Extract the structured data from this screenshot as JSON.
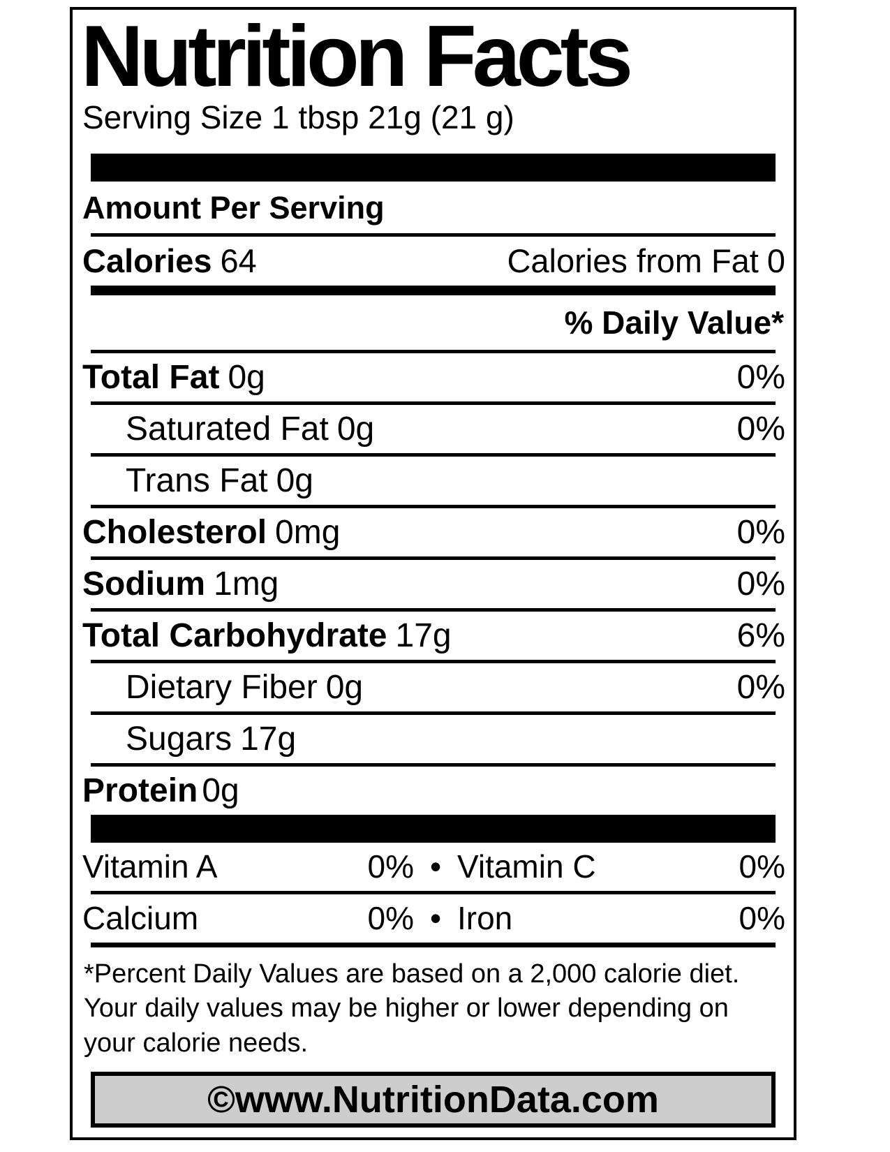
{
  "label": {
    "title": "Nutrition Facts",
    "serving_size": "Serving Size 1 tbsp 21g (21 g)",
    "amount_per_serving": "Amount Per Serving",
    "calories": {
      "label": "Calories",
      "value": "64"
    },
    "calories_from_fat": {
      "label": "Calories from Fat",
      "value": "0"
    },
    "daily_value_header": "% Daily Value*",
    "nutrients": [
      {
        "name": "Total Fat",
        "amount": "0g",
        "dv": "0%"
      },
      {
        "name": "Saturated Fat",
        "amount": "0g",
        "dv": "0%"
      },
      {
        "name": "Trans Fat",
        "amount": "0g",
        "dv": ""
      },
      {
        "name": "Cholesterol",
        "amount": "0mg",
        "dv": "0%"
      },
      {
        "name": "Sodium",
        "amount": "1mg",
        "dv": "0%"
      },
      {
        "name": "Total Carbohydrate",
        "amount": "17g",
        "dv": "6%"
      },
      {
        "name": "Dietary Fiber",
        "amount": "0g",
        "dv": "0%"
      },
      {
        "name": "Sugars",
        "amount": "17g",
        "dv": ""
      },
      {
        "name": "Protein",
        "amount": "0g",
        "dv": ""
      }
    ],
    "bullet": "•",
    "micronutrients": [
      {
        "left": {
          "name": "Vitamin A",
          "dv": "0%"
        },
        "right": {
          "name": "Vitamin C",
          "dv": "0%"
        }
      },
      {
        "left": {
          "name": "Calcium",
          "dv": "0%"
        },
        "right": {
          "name": "Iron",
          "dv": "0%"
        }
      }
    ],
    "footnote_lines": [
      "*Percent Daily Values are based on a 2,000 calorie diet.",
      "Your daily values may be higher or lower depending on",
      "your calorie needs."
    ],
    "watermark": "©www.NutritionData.com",
    "colors": {
      "text": "#000000",
      "background": "#ffffff",
      "watermark_bg": "#cdcdcd"
    }
  }
}
